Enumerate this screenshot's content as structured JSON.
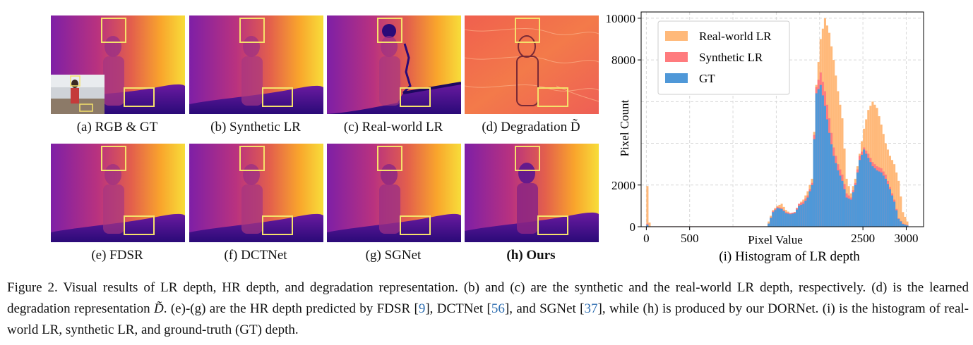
{
  "panels": [
    {
      "id": "a",
      "caption": "(a) RGB & GT"
    },
    {
      "id": "b",
      "caption": "(b) Synthetic LR"
    },
    {
      "id": "c",
      "caption": "(c) Real-world LR"
    },
    {
      "id": "d",
      "caption": "(d) Degradation D̃"
    },
    {
      "id": "e",
      "caption": "(e) FDSR"
    },
    {
      "id": "f",
      "caption": "(f) DCTNet"
    },
    {
      "id": "g",
      "caption": "(g) SGNet"
    },
    {
      "id": "h",
      "caption": "(h) Ours"
    }
  ],
  "histogram_caption": "(i) Histogram of LR depth",
  "chart_data": {
    "type": "bar",
    "title": "",
    "xlabel": "Pixel Value",
    "ylabel": "Pixel Count",
    "xticks": [
      "0",
      "500",
      "2500",
      "3000"
    ],
    "xtick_values": [
      0,
      500,
      2500,
      3000
    ],
    "yticks": [
      "0",
      "2000",
      "8000",
      "10000"
    ],
    "ytick_values": [
      0,
      2000,
      8000,
      10000
    ],
    "xlim": [
      -60,
      3200
    ],
    "ylim": [
      0,
      10300
    ],
    "grid": true,
    "legend_position": "top-left",
    "bin_width": 25,
    "series": [
      {
        "name": "Real-world LR",
        "color": "#ffb97a",
        "points": [
          [
            0,
            1950
          ],
          [
            25,
            200
          ],
          [
            50,
            40
          ],
          [
            1400,
            250
          ],
          [
            1450,
            800
          ],
          [
            1500,
            1000
          ],
          [
            1550,
            1100
          ],
          [
            1600,
            800
          ],
          [
            1650,
            650
          ],
          [
            1700,
            700
          ],
          [
            1750,
            1100
          ],
          [
            1800,
            1300
          ],
          [
            1850,
            1700
          ],
          [
            1900,
            2300
          ],
          [
            1950,
            6800
          ],
          [
            2000,
            9000
          ],
          [
            2050,
            10000
          ],
          [
            2100,
            9300
          ],
          [
            2150,
            8000
          ],
          [
            2200,
            6500
          ],
          [
            2250,
            5200
          ],
          [
            2300,
            2300
          ],
          [
            2350,
            1600
          ],
          [
            2400,
            2300
          ],
          [
            2450,
            3500
          ],
          [
            2500,
            4700
          ],
          [
            2550,
            5600
          ],
          [
            2600,
            6000
          ],
          [
            2650,
            5700
          ],
          [
            2700,
            4900
          ],
          [
            2750,
            4000
          ],
          [
            2800,
            3400
          ],
          [
            2850,
            3000
          ],
          [
            2900,
            2200
          ],
          [
            2950,
            700
          ],
          [
            3000,
            250
          ]
        ]
      },
      {
        "name": "Synthetic LR",
        "color": "#ff7b7e",
        "points": [
          [
            0,
            150
          ],
          [
            25,
            60
          ],
          [
            1400,
            150
          ],
          [
            1450,
            750
          ],
          [
            1500,
            950
          ],
          [
            1550,
            900
          ],
          [
            1600,
            700
          ],
          [
            1650,
            650
          ],
          [
            1700,
            700
          ],
          [
            1750,
            1100
          ],
          [
            1800,
            1200
          ],
          [
            1850,
            1500
          ],
          [
            1900,
            2100
          ],
          [
            1950,
            6700
          ],
          [
            2000,
            7400
          ],
          [
            2050,
            6500
          ],
          [
            2100,
            5200
          ],
          [
            2150,
            3800
          ],
          [
            2200,
            3000
          ],
          [
            2250,
            2500
          ],
          [
            2300,
            1600
          ],
          [
            2350,
            1400
          ],
          [
            2400,
            2100
          ],
          [
            2450,
            3400
          ],
          [
            2500,
            3800
          ],
          [
            2550,
            3500
          ],
          [
            2600,
            3100
          ],
          [
            2650,
            2900
          ],
          [
            2700,
            2800
          ],
          [
            2750,
            2500
          ],
          [
            2800,
            1900
          ],
          [
            2850,
            1300
          ],
          [
            2900,
            400
          ],
          [
            2950,
            150
          ],
          [
            3000,
            80
          ]
        ]
      },
      {
        "name": "GT",
        "color": "#4f98d8",
        "points": [
          [
            0,
            100
          ],
          [
            25,
            50
          ],
          [
            1400,
            150
          ],
          [
            1450,
            700
          ],
          [
            1500,
            900
          ],
          [
            1550,
            850
          ],
          [
            1600,
            650
          ],
          [
            1650,
            600
          ],
          [
            1700,
            650
          ],
          [
            1750,
            1000
          ],
          [
            1800,
            1100
          ],
          [
            1850,
            1400
          ],
          [
            1900,
            2000
          ],
          [
            1950,
            6400
          ],
          [
            2000,
            6800
          ],
          [
            2050,
            5800
          ],
          [
            2100,
            4500
          ],
          [
            2150,
            3400
          ],
          [
            2200,
            2700
          ],
          [
            2250,
            2200
          ],
          [
            2300,
            1400
          ],
          [
            2350,
            1300
          ],
          [
            2400,
            2000
          ],
          [
            2450,
            3200
          ],
          [
            2500,
            3700
          ],
          [
            2550,
            3300
          ],
          [
            2600,
            2900
          ],
          [
            2650,
            2700
          ],
          [
            2700,
            2600
          ],
          [
            2750,
            2300
          ],
          [
            2800,
            1800
          ],
          [
            2850,
            1200
          ],
          [
            2900,
            380
          ],
          [
            2950,
            130
          ],
          [
            3000,
            60
          ]
        ]
      }
    ]
  },
  "caption": {
    "p1": "Figure 2.  Visual results of LR depth, HR depth, and degradation representation.  (b) and (c) are the synthetic and the real-world LR depth, respectively. (d) is the learned degradation representation ",
    "dsym": "D̃",
    "p2": ". (e)-(g) are the HR depth predicted by FDSR [",
    "r1": "9",
    "p3": "], DCTNet [",
    "r2": "56",
    "p4": "], and SGNet [",
    "r3": "37",
    "p5": "], while (h) is produced by our DORNet. (i) is the histogram of real-world LR, synthetic LR, and ground-truth (GT) depth."
  },
  "colors": {
    "highlight_box": "#f5e16b",
    "depth_far": "#f9d23a",
    "depth_near": "#3a0f8c"
  }
}
